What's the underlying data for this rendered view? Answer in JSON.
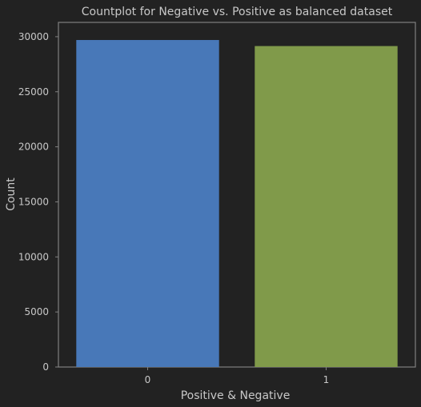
{
  "chart_data": {
    "type": "bar",
    "title": "Countplot for Negative vs. Positive as balanced dataset",
    "xlabel": "Positive & Negative",
    "ylabel": "Count",
    "categories": [
      "0",
      "1"
    ],
    "values": [
      29700,
      29150
    ],
    "bar_colors": [
      "#4878b8",
      "#809a4a"
    ],
    "ylim": [
      0,
      31300
    ],
    "yticks": [
      0,
      5000,
      10000,
      15000,
      20000,
      25000,
      30000
    ],
    "grid": false,
    "legend": "none",
    "background_color": "#222222",
    "axes_edge_color": "#808080",
    "text_color": "#c8c8c8"
  }
}
